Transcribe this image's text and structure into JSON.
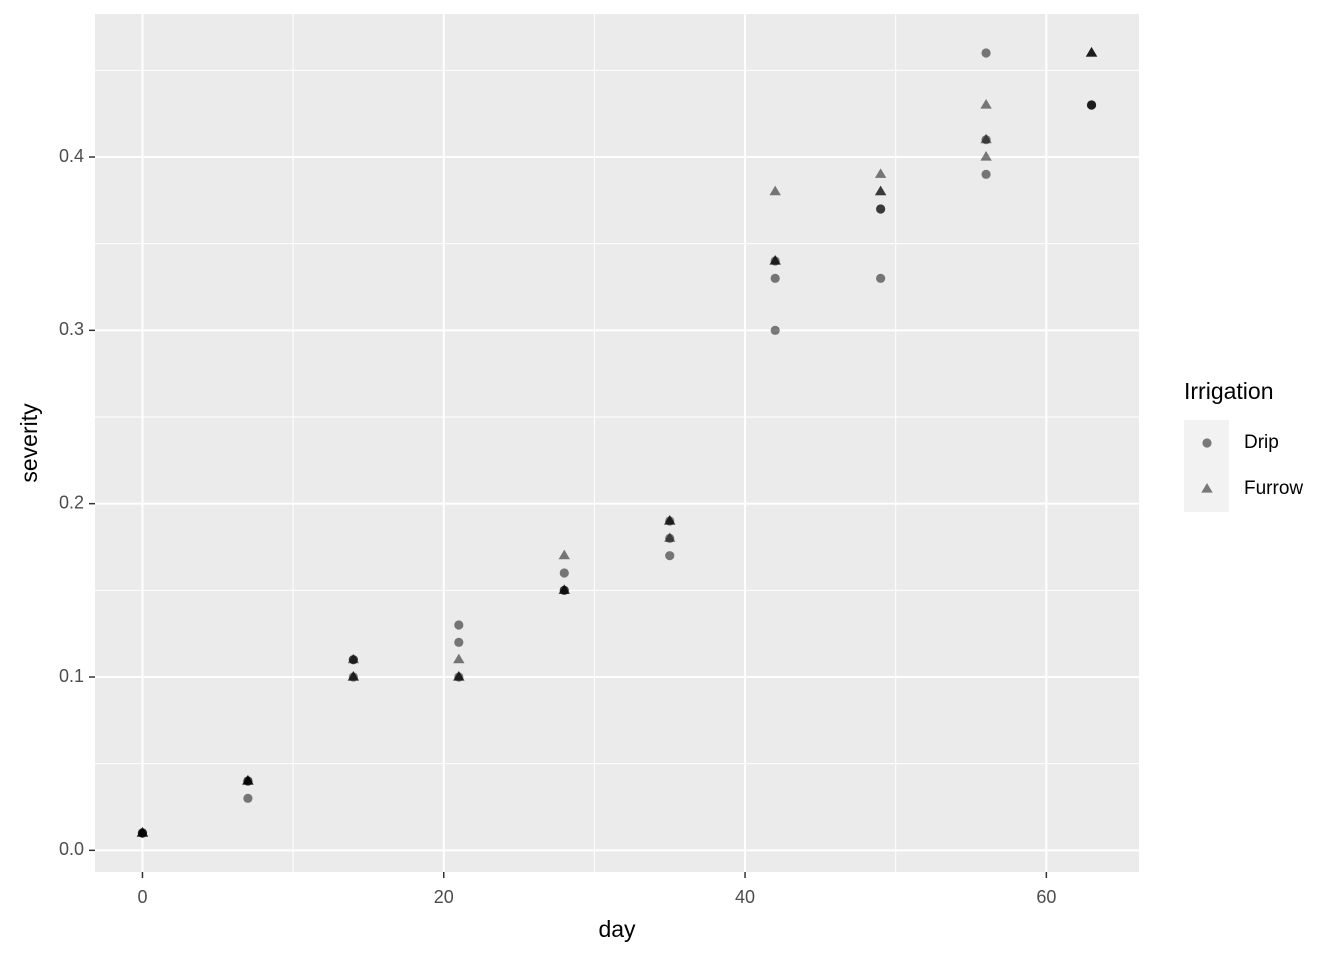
{
  "chart_data": {
    "type": "scatter",
    "x_label": "day",
    "y_label": "severity",
    "xlim": [
      -3.15,
      66.15
    ],
    "xticks": [
      0,
      20,
      40,
      60
    ],
    "ylim": [
      -0.0125,
      0.4825
    ],
    "yticks": [
      {
        "value": 0,
        "label": "0.0"
      },
      0.1,
      0.2,
      0.3,
      0.4
    ],
    "grid": true,
    "alpha": 0.5,
    "legend_title": "Irrigation",
    "legend_position": "right",
    "series": [
      {
        "name": "Drip",
        "shape": "circle",
        "color": "#000000",
        "x": [
          0,
          0,
          0,
          7,
          7,
          7,
          14,
          14,
          14,
          21,
          21,
          21,
          28,
          28,
          28,
          35,
          35,
          35,
          42,
          42,
          42,
          49,
          49,
          49,
          56,
          56,
          56,
          63,
          63,
          63
        ],
        "values": [
          0.01,
          0.01,
          0.01,
          0.03,
          0.04,
          0.04,
          0.1,
          0.11,
          0.11,
          0.13,
          0.12,
          0.1,
          0.16,
          0.15,
          0.15,
          0.17,
          0.18,
          0.19,
          0.33,
          0.3,
          0.34,
          0.33,
          0.37,
          0.37,
          0.46,
          0.39,
          0.41,
          0.43,
          0.43,
          0.43
        ]
      },
      {
        "name": "Furrow",
        "shape": "triangle",
        "color": "#000000",
        "x": [
          0,
          0,
          0,
          7,
          7,
          7,
          14,
          14,
          14,
          21,
          21,
          21,
          28,
          28,
          28,
          35,
          35,
          35,
          42,
          42,
          42,
          49,
          49,
          49,
          56,
          56,
          56,
          63,
          63,
          63
        ],
        "values": [
          0.01,
          0.01,
          0.01,
          0.04,
          0.04,
          0.04,
          0.11,
          0.1,
          0.1,
          0.11,
          0.1,
          0.1,
          0.17,
          0.15,
          0.15,
          0.19,
          0.18,
          0.19,
          0.38,
          0.34,
          0.34,
          0.39,
          0.38,
          0.38,
          0.43,
          0.4,
          0.41,
          0.46,
          0.46,
          0.46
        ]
      }
    ]
  }
}
